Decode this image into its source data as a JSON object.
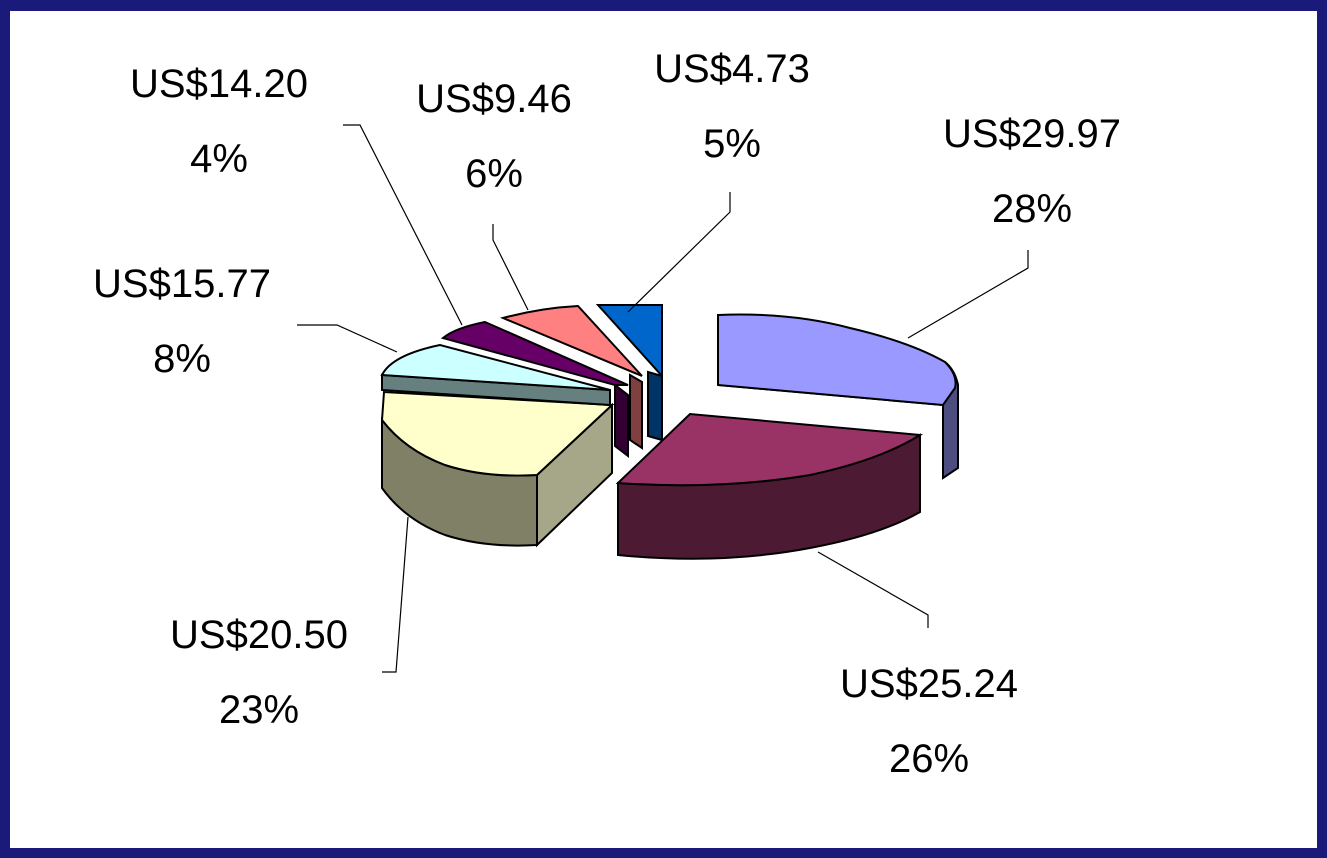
{
  "colors": {
    "frame": "#1a1a7a",
    "background": "#ffffff"
  },
  "chart_data": {
    "type": "pie",
    "style": "3d-exploded",
    "slices": [
      {
        "value_label": "US$29.97",
        "percent_label": "28%",
        "value": 29.97,
        "percent": 28,
        "top_color": "#9999ff",
        "side_color": "#4d4d80"
      },
      {
        "value_label": "US$25.24",
        "percent_label": "26%",
        "value": 25.24,
        "percent": 26,
        "top_color": "#993366",
        "side_color": "#4d1a33"
      },
      {
        "value_label": "US$20.50",
        "percent_label": "23%",
        "value": 20.5,
        "percent": 23,
        "top_color": "#ffffcc",
        "side_color": "#808066"
      },
      {
        "value_label": "US$15.77",
        "percent_label": "8%",
        "value": 15.77,
        "percent": 8,
        "top_color": "#ccffff",
        "side_color": "#668080"
      },
      {
        "value_label": "US$14.20",
        "percent_label": "4%",
        "value": 14.2,
        "percent": 4,
        "top_color": "#660066",
        "side_color": "#330033"
      },
      {
        "value_label": "US$9.46",
        "percent_label": "6%",
        "value": 9.46,
        "percent": 6,
        "top_color": "#ff8080",
        "side_color": "#804040"
      },
      {
        "value_label": "US$4.73",
        "percent_label": "5%",
        "value": 4.73,
        "percent": 5,
        "top_color": "#0066cc",
        "side_color": "#003366"
      }
    ]
  }
}
